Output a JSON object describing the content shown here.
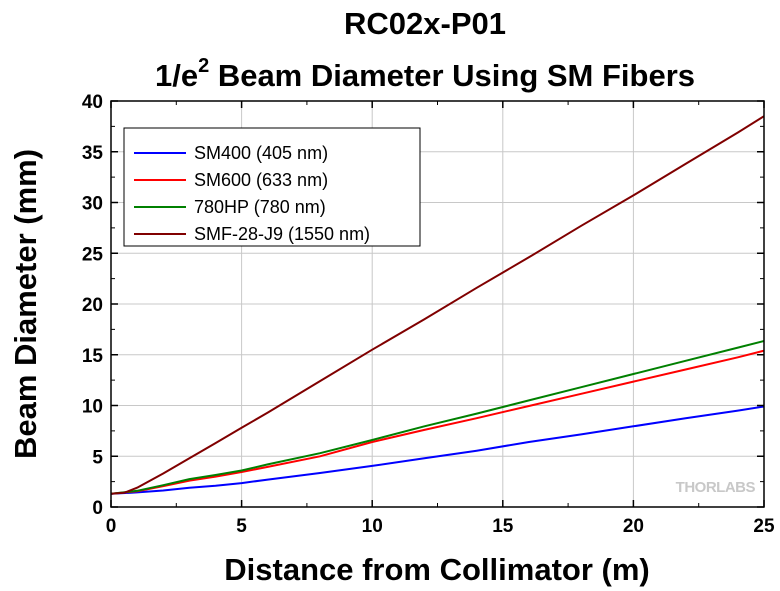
{
  "chart_data": {
    "type": "line",
    "title": "RC02x-P01",
    "subtitle_prefix": "1/e",
    "subtitle_superscript": "2",
    "subtitle_rest": " Beam Diameter Using SM Fibers",
    "xlabel": "Distance from Collimator (m)",
    "ylabel": "Beam Diameter (mm)",
    "xlim": [
      0,
      25
    ],
    "ylim": [
      0,
      40
    ],
    "xticks": [
      0,
      5,
      10,
      15,
      20,
      25
    ],
    "yticks": [
      0,
      5,
      10,
      15,
      20,
      25,
      30,
      35,
      40
    ],
    "grid": true,
    "legend_position": "top-left",
    "watermark": "THORLABS",
    "series": [
      {
        "name": "SM400 (405 nm)",
        "color": "#0000ff",
        "x": [
          0,
          1,
          2,
          3,
          4,
          5,
          6,
          8,
          10,
          12,
          14,
          16,
          18,
          20,
          22,
          24,
          25
        ],
        "y": [
          1.3,
          1.44,
          1.63,
          1.9,
          2.1,
          2.35,
          2.7,
          3.35,
          4.05,
          4.8,
          5.55,
          6.4,
          7.15,
          7.95,
          8.75,
          9.5,
          9.9
        ]
      },
      {
        "name": "SM600 (633 nm)",
        "color": "#ff0000",
        "x": [
          0,
          1,
          2,
          3,
          4,
          5,
          6,
          8,
          10,
          12,
          14,
          16,
          18,
          20,
          22,
          24,
          25
        ],
        "y": [
          1.3,
          1.55,
          2.05,
          2.6,
          3.0,
          3.45,
          3.95,
          5.0,
          6.4,
          7.6,
          8.75,
          9.95,
          11.15,
          12.35,
          13.55,
          14.75,
          15.4
        ]
      },
      {
        "name": "780HP (780 nm)",
        "color": "#008000",
        "x": [
          0,
          1,
          2,
          3,
          4,
          5,
          6,
          8,
          10,
          12,
          14,
          16,
          18,
          20,
          22,
          24,
          25
        ],
        "y": [
          1.3,
          1.6,
          2.15,
          2.75,
          3.15,
          3.6,
          4.2,
          5.3,
          6.6,
          7.95,
          9.2,
          10.5,
          11.8,
          13.1,
          14.4,
          15.7,
          16.35
        ]
      },
      {
        "name": "SMF-28-J9 (1550 nm)",
        "color": "#800000",
        "x": [
          0,
          0.5,
          1,
          2,
          3,
          4,
          5,
          6,
          8,
          10,
          12,
          14,
          16,
          18,
          20,
          22,
          24,
          25
        ],
        "y": [
          1.3,
          1.4,
          1.9,
          3.3,
          4.8,
          6.3,
          7.8,
          9.3,
          12.4,
          15.5,
          18.5,
          21.6,
          24.6,
          27.7,
          30.7,
          33.8,
          36.9,
          38.5
        ]
      }
    ]
  }
}
